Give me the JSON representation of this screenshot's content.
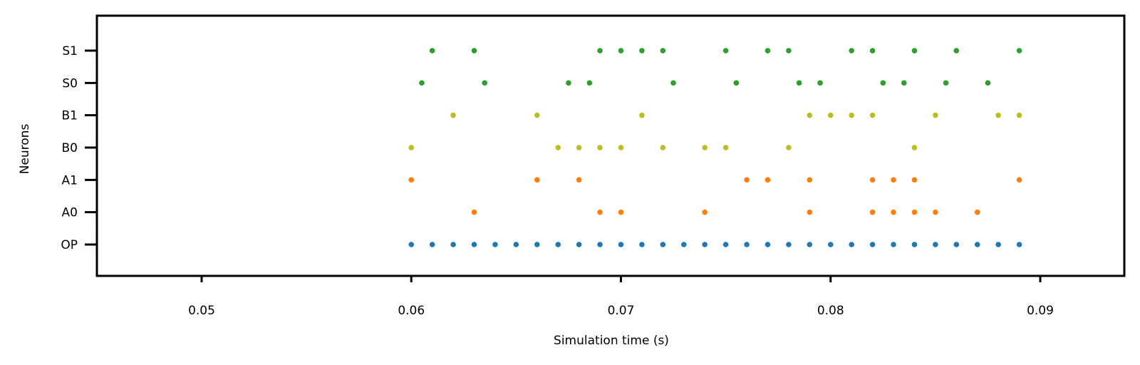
{
  "chart_data": {
    "type": "scatter",
    "title": "",
    "xlabel": "Simulation time (s)",
    "ylabel": "Neurons",
    "xlim": [
      0.045,
      0.094
    ],
    "xticks": [
      "0.05",
      "0.06",
      "0.07",
      "0.08",
      "0.09"
    ],
    "categories": [
      "OP",
      "A0",
      "A1",
      "B0",
      "B1",
      "S0",
      "S1"
    ],
    "grid": false,
    "series": [
      {
        "neuron": "OP",
        "color": "#1f77b4",
        "x": [
          0.06,
          0.061,
          0.062,
          0.063,
          0.064,
          0.065,
          0.066,
          0.067,
          0.068,
          0.069,
          0.07,
          0.071,
          0.072,
          0.073,
          0.074,
          0.075,
          0.076,
          0.077,
          0.078,
          0.079,
          0.08,
          0.081,
          0.082,
          0.083,
          0.084,
          0.085,
          0.086,
          0.087,
          0.088,
          0.089
        ]
      },
      {
        "neuron": "A0",
        "color": "#ff7f0e",
        "x": [
          0.063,
          0.069,
          0.07,
          0.074,
          0.079,
          0.082,
          0.083,
          0.084,
          0.085,
          0.087
        ]
      },
      {
        "neuron": "A1",
        "color": "#ff7f0e",
        "x": [
          0.06,
          0.066,
          0.068,
          0.076,
          0.077,
          0.079,
          0.082,
          0.083,
          0.084,
          0.089
        ]
      },
      {
        "neuron": "B0",
        "color": "#bcbd22",
        "x": [
          0.06,
          0.067,
          0.068,
          0.069,
          0.07,
          0.072,
          0.074,
          0.075,
          0.078,
          0.084
        ]
      },
      {
        "neuron": "B1",
        "color": "#bcbd22",
        "x": [
          0.062,
          0.066,
          0.071,
          0.079,
          0.08,
          0.081,
          0.082,
          0.085,
          0.088,
          0.089
        ]
      },
      {
        "neuron": "S0",
        "color": "#2ca02c",
        "x": [
          0.0605,
          0.0635,
          0.0675,
          0.0685,
          0.0725,
          0.0755,
          0.0785,
          0.0795,
          0.0825,
          0.0835,
          0.0855,
          0.0875
        ]
      },
      {
        "neuron": "S1",
        "color": "#2ca02c",
        "x": [
          0.061,
          0.063,
          0.069,
          0.07,
          0.071,
          0.072,
          0.075,
          0.077,
          0.078,
          0.081,
          0.082,
          0.084,
          0.086,
          0.089
        ]
      }
    ]
  }
}
